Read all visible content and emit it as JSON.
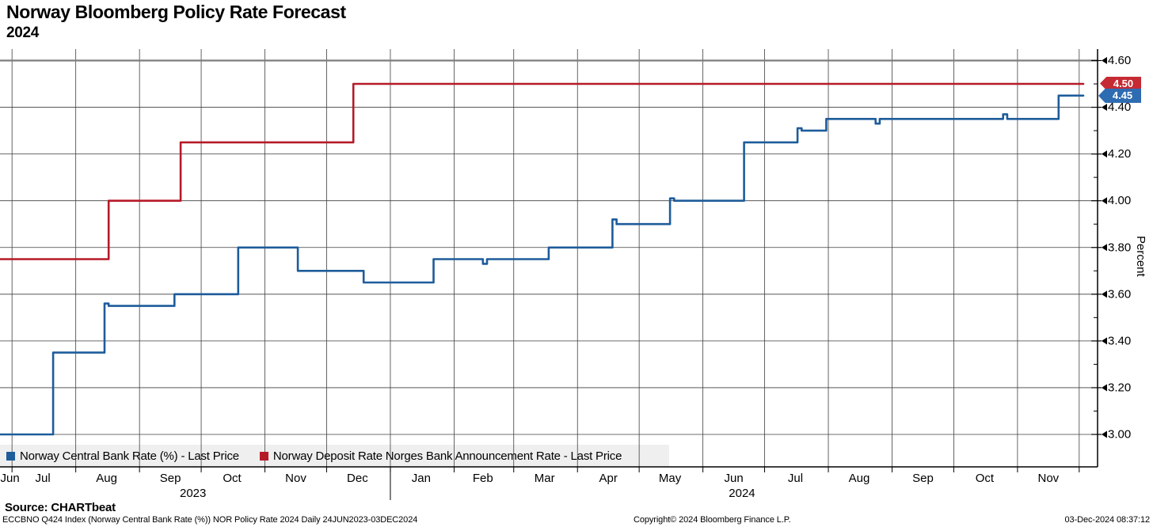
{
  "title": "Norway Bloomberg Policy Rate Forecast",
  "subtitle": "2024",
  "source_line": "Source: CHARTbeat",
  "footer": {
    "ticker_line": "ECCBNO Q424 Index (Norway Central Bank Rate (%)) NOR Policy Rate 2024  Daily 24JUN2023-03DEC2024",
    "copyright": "Copyright© 2024 Bloomberg Finance L.P.",
    "timestamp": "03-Dec-2024 08:37:12"
  },
  "y_axis": {
    "title": "Percent",
    "tick_labels": [
      "4.60",
      "4.40",
      "4.20",
      "4.00",
      "3.80",
      "3.60",
      "3.40",
      "3.20",
      "3.00"
    ],
    "minor_ticks": [
      3.1,
      3.3,
      3.5,
      3.7,
      3.9,
      4.1,
      4.3,
      4.5
    ]
  },
  "price_tags": [
    {
      "text": "4.50",
      "color": "#c52b33"
    },
    {
      "text": "4.45",
      "color": "#2e6cb2"
    }
  ],
  "chart_data": {
    "type": "line",
    "title": "Norway Bloomberg Policy Rate Forecast 2024",
    "ylabel": "Percent",
    "ylim": [
      3.0,
      4.6
    ],
    "y_major_step": 0.2,
    "grid": true,
    "legend_position": "bottom",
    "x_range": {
      "start": "2023-06-24",
      "end": "2024-12-03"
    },
    "x_ticks": [
      {
        "label": "Jun",
        "date": "2023-06-30"
      },
      {
        "label": "Jul",
        "date": "2023-07-16"
      },
      {
        "label": "Aug",
        "date": "2023-08-16"
      },
      {
        "label": "Sep",
        "date": "2023-09-16"
      },
      {
        "label": "Oct",
        "date": "2023-10-16"
      },
      {
        "label": "Nov",
        "date": "2023-11-16"
      },
      {
        "label": "Dec",
        "date": "2023-12-16"
      },
      {
        "label": "Jan",
        "date": "2024-01-16"
      },
      {
        "label": "Feb",
        "date": "2024-02-15"
      },
      {
        "label": "Mar",
        "date": "2024-03-16"
      },
      {
        "label": "Apr",
        "date": "2024-04-16"
      },
      {
        "label": "May",
        "date": "2024-05-16"
      },
      {
        "label": "Jun",
        "date": "2024-06-16"
      },
      {
        "label": "Jul",
        "date": "2024-07-16"
      },
      {
        "label": "Aug",
        "date": "2024-08-16"
      },
      {
        "label": "Sep",
        "date": "2024-09-16"
      },
      {
        "label": "Oct",
        "date": "2024-10-16"
      },
      {
        "label": "Nov",
        "date": "2024-11-16"
      }
    ],
    "x_year_labels": [
      {
        "label": "2023",
        "date": "2023-09-27"
      },
      {
        "label": "2024",
        "date": "2024-06-20"
      }
    ],
    "year_divider_date": "2024-01-01",
    "series": [
      {
        "name": "Norway Central Bank Rate (%) - Last Price",
        "color": "#1e5c9b",
        "last_price": "4.45",
        "step_points": [
          [
            "2023-06-24",
            3.0
          ],
          [
            "2023-07-21",
            3.35
          ],
          [
            "2023-08-15",
            3.56
          ],
          [
            "2023-08-17",
            3.55
          ],
          [
            "2023-09-18",
            3.6
          ],
          [
            "2023-10-19",
            3.8
          ],
          [
            "2023-11-17",
            3.7
          ],
          [
            "2023-12-19",
            3.65
          ],
          [
            "2024-01-22",
            3.75
          ],
          [
            "2024-02-15",
            3.73
          ],
          [
            "2024-02-17",
            3.75
          ],
          [
            "2024-03-18",
            3.8
          ],
          [
            "2024-04-18",
            3.92
          ],
          [
            "2024-04-20",
            3.9
          ],
          [
            "2024-05-16",
            4.01
          ],
          [
            "2024-05-18",
            4.0
          ],
          [
            "2024-06-21",
            4.25
          ],
          [
            "2024-07-17",
            4.31
          ],
          [
            "2024-07-19",
            4.3
          ],
          [
            "2024-07-31",
            4.35
          ],
          [
            "2024-08-24",
            4.33
          ],
          [
            "2024-08-26",
            4.35
          ],
          [
            "2024-10-25",
            4.37
          ],
          [
            "2024-10-27",
            4.35
          ],
          [
            "2024-11-21",
            4.45
          ],
          [
            "2024-12-03",
            4.45
          ]
        ]
      },
      {
        "name": "Norway Deposit Rate Norges Bank Announcement Rate - Last Price",
        "color": "#b61a28",
        "last_price": "4.50",
        "step_points": [
          [
            "2023-06-24",
            3.75
          ],
          [
            "2023-08-17",
            4.0
          ],
          [
            "2023-09-21",
            4.25
          ],
          [
            "2023-12-14",
            4.5
          ],
          [
            "2024-12-03",
            4.5
          ]
        ]
      }
    ]
  }
}
